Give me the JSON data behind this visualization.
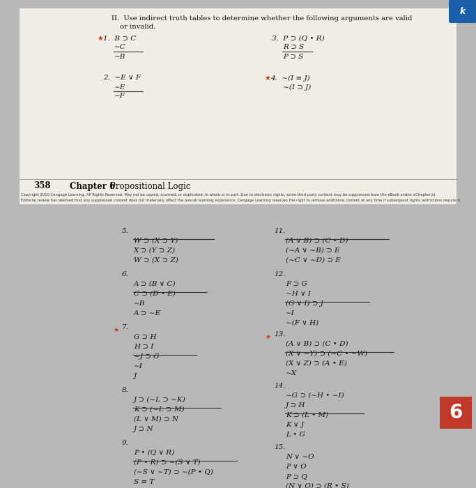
{
  "bg_top": "#b8b8b8",
  "bg_page": "#f0ede6",
  "bg_bottom": "#dedad2",
  "title1": "II.  Use indirect truth tables to determine whether the following arguments are valid",
  "title2": "      or invalid.",
  "page_num": "358",
  "chapter": "Chapter 6    Propositional Logic",
  "copy1": "Copyright 2010 Cengage Learning. All Rights Reserved. May not be copied, scanned, or duplicated, in whole or in part. Due to electronic rights, some third party content may be suppressed from the eBook and/or eChapter(s).",
  "copy2": "Editorial review has deemed that any suppressed content does not materially affect the overall learning experience. Cengage Learning reserves the right to remove additional content at any time if subsequent rights restrictions require it."
}
